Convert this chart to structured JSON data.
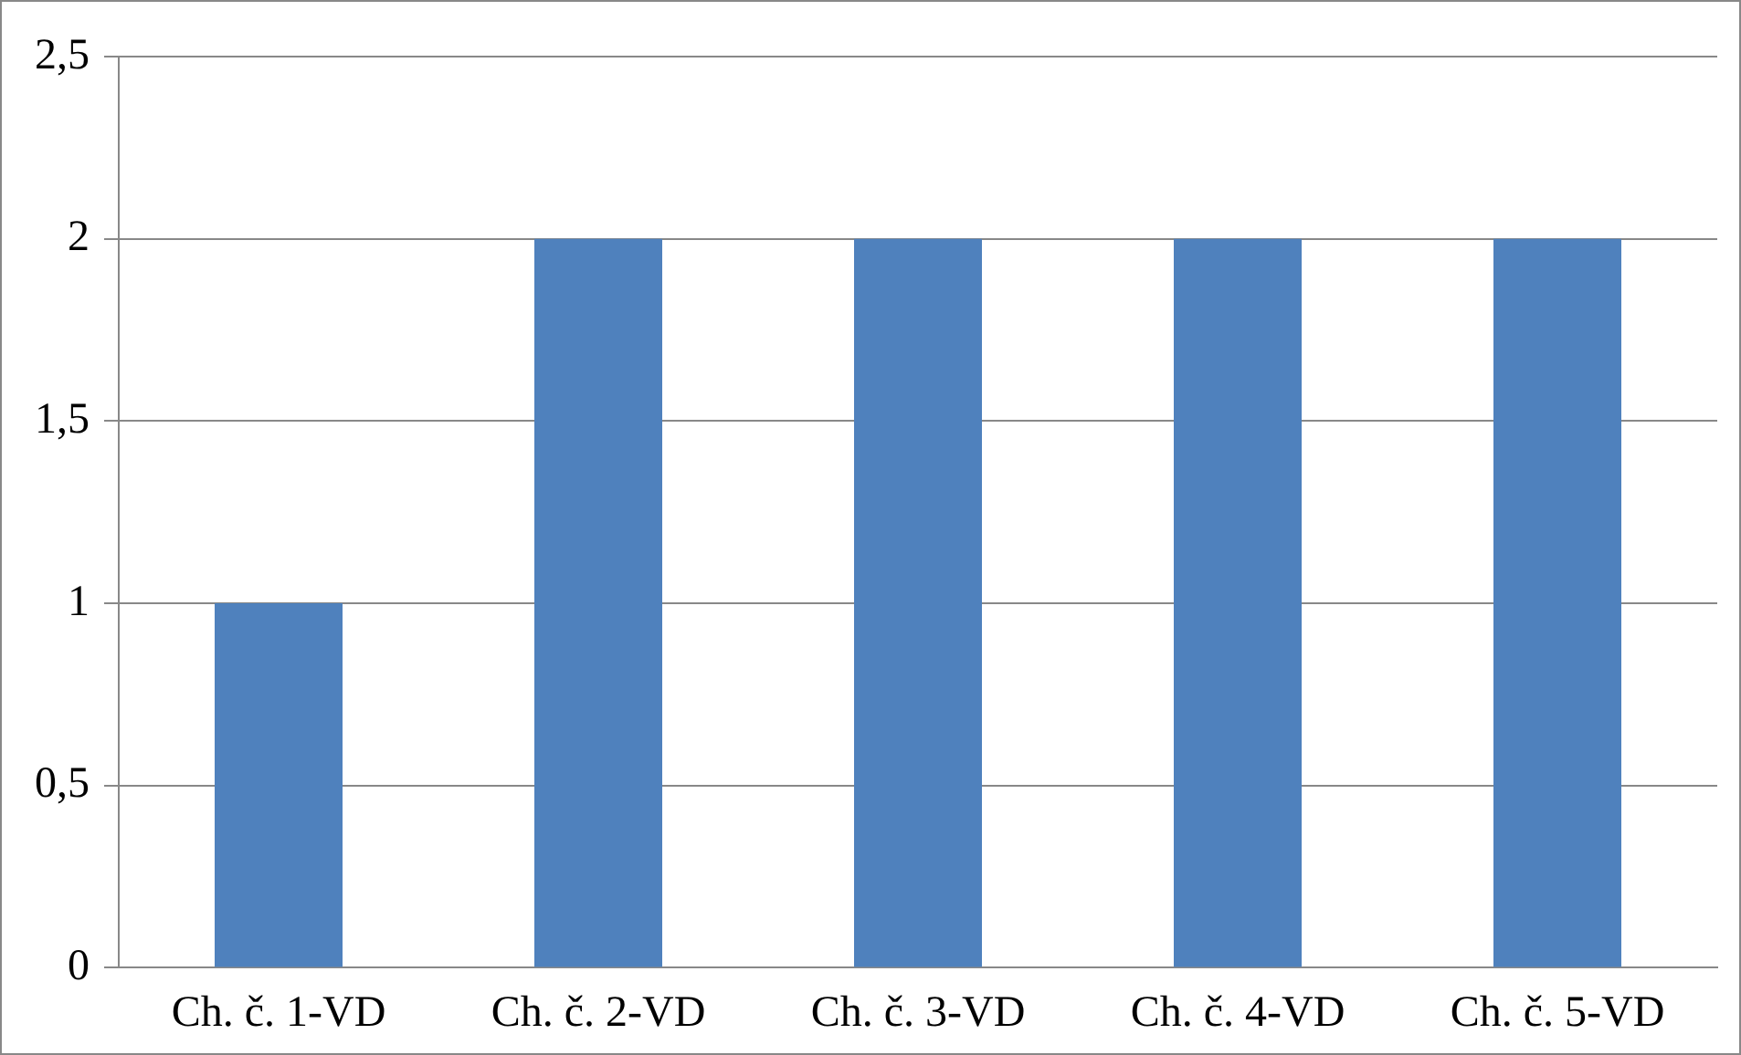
{
  "chart_data": {
    "type": "bar",
    "categories": [
      "Ch. č. 1-VD",
      "Ch. č. 2-VD",
      "Ch. č. 3-VD",
      "Ch. č. 4-VD",
      "Ch. č. 5-VD"
    ],
    "values": [
      1,
      2,
      2,
      2,
      2
    ],
    "color": "#4f81bd",
    "ylim": [
      0,
      2.5
    ],
    "yticks": [
      0,
      {
        "value": 0.5,
        "label": "0,5"
      },
      1,
      {
        "value": 1.5,
        "label": "1,5"
      },
      2,
      {
        "value": 2.5,
        "label": "2,5"
      }
    ],
    "grid": "y"
  }
}
